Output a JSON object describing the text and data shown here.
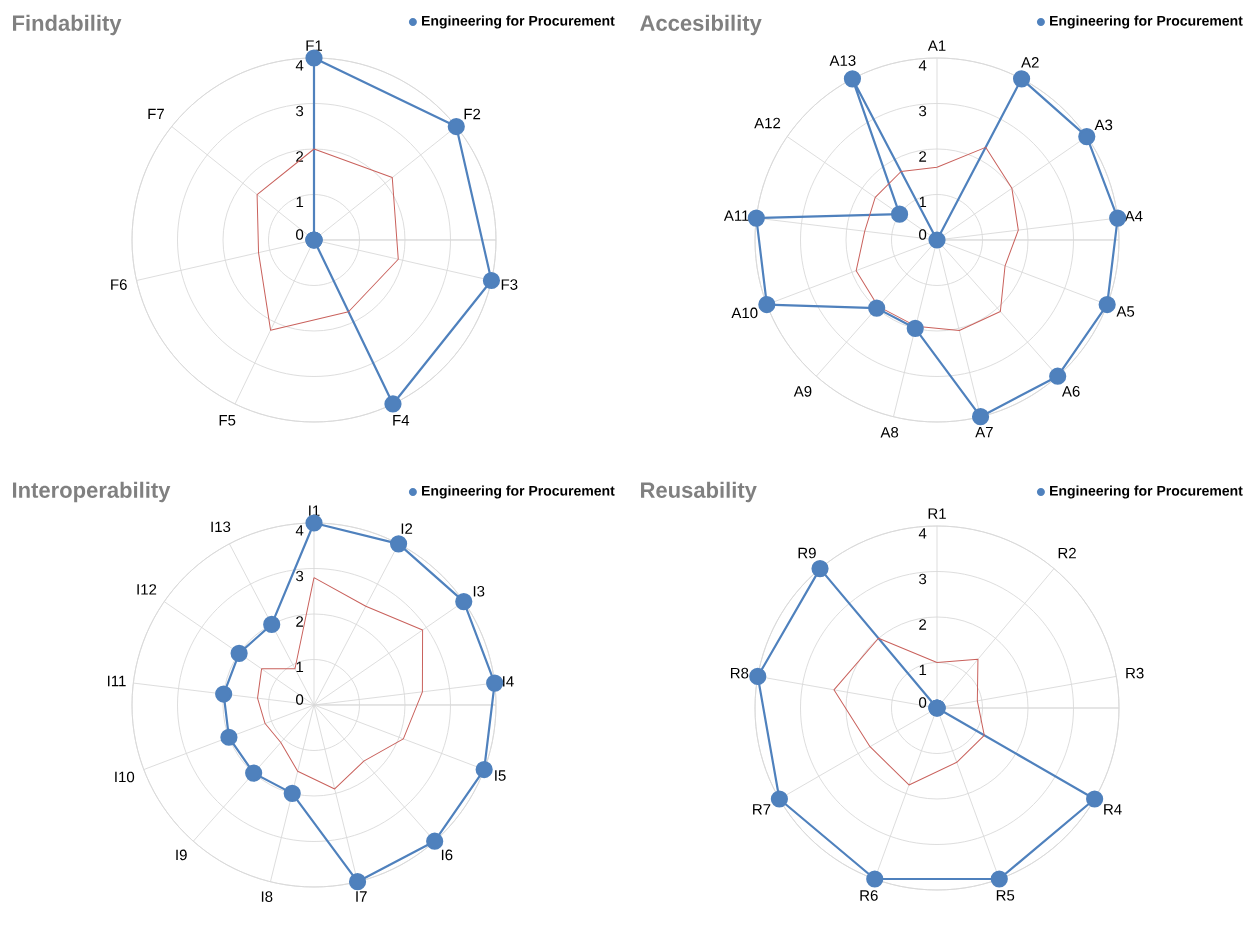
{
  "chart_data": [
    {
      "type": "radar",
      "title": "Findability",
      "categories": [
        "F1",
        "F2",
        "F3",
        "F4",
        "F5",
        "F6",
        "F7"
      ],
      "ylim": [
        0,
        4
      ],
      "yticks": [
        0,
        1,
        2,
        3,
        4
      ],
      "grid": true,
      "legend": "top right",
      "series": [
        {
          "name": "Engineering for Procurement",
          "color": "#4f81bd",
          "marker": "circle",
          "values": [
            4,
            4,
            4,
            4,
            0,
            0,
            0
          ]
        },
        {
          "color": "#c9615c",
          "marker": "none",
          "values": [
            2,
            2.2,
            1.9,
            1.75,
            2.2,
            1.25,
            1.6
          ]
        }
      ]
    },
    {
      "type": "radar",
      "title": "Accesibility",
      "categories": [
        "A1",
        "A2",
        "A3",
        "A4",
        "A5",
        "A6",
        "A7",
        "A8",
        "A9",
        "A10",
        "A11",
        "A12",
        "A13"
      ],
      "ylim": [
        0,
        4
      ],
      "yticks": [
        0,
        1,
        2,
        3,
        4
      ],
      "grid": true,
      "legend": "top right",
      "series": [
        {
          "name": "Engineering for Procurement",
          "color": "#4f81bd",
          "marker": "circle",
          "values": [
            0,
            4,
            4,
            4,
            4,
            4,
            4,
            2,
            2,
            4,
            4,
            1,
            4
          ]
        },
        {
          "color": "#c9615c",
          "marker": "none",
          "values": [
            1.6,
            2.3,
            2.0,
            1.8,
            1.6,
            2.1,
            2.05,
            1.95,
            1.95,
            1.9,
            1.6,
            1.65,
            1.7
          ]
        }
      ]
    },
    {
      "type": "radar",
      "title": "Interoperability",
      "categories": [
        "I1",
        "I2",
        "I3",
        "I4",
        "I5",
        "I6",
        "I7",
        "I8",
        "I9",
        "I10",
        "I11",
        "I12",
        "I13"
      ],
      "ylim": [
        0,
        4
      ],
      "yticks": [
        0,
        1,
        2,
        3,
        4
      ],
      "grid": true,
      "legend": "top right",
      "series": [
        {
          "name": "Engineering for Procurement",
          "color": "#4f81bd",
          "marker": "circle",
          "values": [
            4,
            4,
            4,
            4,
            4,
            4,
            4,
            2,
            2,
            2,
            2,
            2,
            2
          ]
        },
        {
          "color": "#c9615c",
          "marker": "none",
          "values": [
            2.8,
            2.45,
            2.9,
            2.4,
            2.1,
            1.65,
            1.9,
            1.5,
            1.1,
            1.15,
            1.25,
            1.4,
            0.9
          ]
        }
      ]
    },
    {
      "type": "radar",
      "title": "Reusability",
      "categories": [
        "R1",
        "R2",
        "R3",
        "R4",
        "R5",
        "R6",
        "R7",
        "R8",
        "R9"
      ],
      "ylim": [
        0,
        4
      ],
      "yticks": [
        0,
        1,
        2,
        3,
        4
      ],
      "grid": true,
      "legend": "top right",
      "series": [
        {
          "name": "Engineering for Procurement",
          "color": "#4f81bd",
          "marker": "circle",
          "values": [
            0,
            0,
            0,
            4,
            4,
            4,
            4,
            4,
            4
          ]
        },
        {
          "color": "#c9615c",
          "marker": "none",
          "values": [
            1.0,
            1.4,
            0.9,
            1.2,
            1.27,
            1.8,
            1.7,
            2.3,
            2.0
          ]
        }
      ]
    }
  ]
}
